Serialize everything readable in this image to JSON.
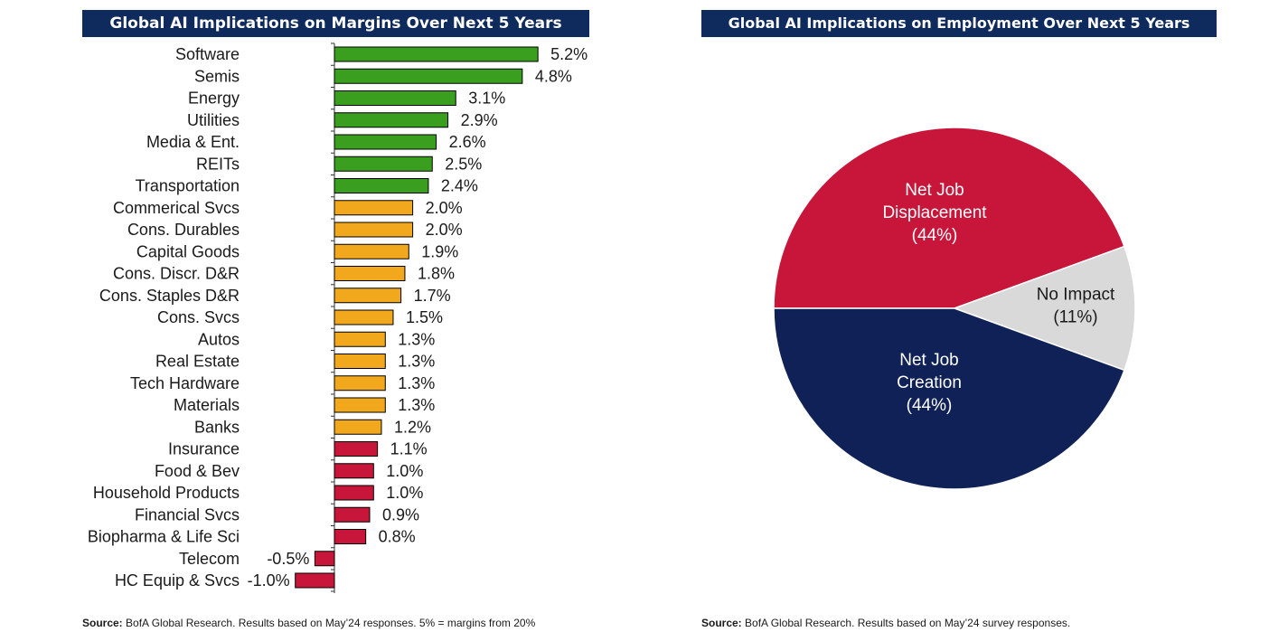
{
  "chart_data": [
    {
      "type": "bar",
      "orientation": "horizontal",
      "title": "Global AI Implications on Margins Over Next 5 Years",
      "categories": [
        "Software",
        "Semis",
        "Energy",
        "Utilities",
        "Media & Ent.",
        "REITs",
        "Transportation",
        "Commerical Svcs",
        "Cons. Durables",
        "Capital Goods",
        "Cons. Discr. D&R",
        "Cons. Staples D&R",
        "Cons. Svcs",
        "Autos",
        "Real Estate",
        "Tech Hardware",
        "Materials",
        "Banks",
        "Insurance",
        "Food & Bev",
        "Household Products",
        "Financial Svcs",
        "Biopharma & Life Sci",
        "Telecom",
        "HC Equip & Svcs"
      ],
      "values": [
        5.2,
        4.8,
        3.1,
        2.9,
        2.6,
        2.5,
        2.4,
        2.0,
        2.0,
        1.9,
        1.8,
        1.7,
        1.5,
        1.3,
        1.3,
        1.3,
        1.3,
        1.2,
        1.1,
        1.0,
        1.0,
        0.9,
        0.8,
        -0.5,
        -1.0
      ],
      "value_labels": [
        "5.2%",
        "4.8%",
        "3.1%",
        "2.9%",
        "2.6%",
        "2.5%",
        "2.4%",
        "2.0%",
        "2.0%",
        "1.9%",
        "1.8%",
        "1.7%",
        "1.5%",
        "1.3%",
        "1.3%",
        "1.3%",
        "1.3%",
        "1.2%",
        "1.1%",
        "1.0%",
        "1.0%",
        "0.9%",
        "0.8%",
        "-0.5%",
        "-1.0%"
      ],
      "tiers": [
        "high",
        "high",
        "high",
        "high",
        "high",
        "high",
        "high",
        "mid",
        "mid",
        "mid",
        "mid",
        "mid",
        "mid",
        "mid",
        "mid",
        "mid",
        "mid",
        "mid",
        "low",
        "low",
        "low",
        "low",
        "low",
        "low",
        "low"
      ],
      "colors": {
        "high": "#3a9e1e",
        "mid": "#f2a81d",
        "low": "#c8163a"
      },
      "xlim": [
        -1.0,
        5.2
      ],
      "grid": false,
      "legend": "none"
    },
    {
      "type": "pie",
      "title": "Global AI Implications on Employment Over Next 5 Years",
      "slices": [
        {
          "label_lines": [
            "Net Job",
            "Displacement",
            "(44%)"
          ],
          "value": 44,
          "color": "#c8163a",
          "text_color": "#ffffff"
        },
        {
          "label_lines": [
            "No Impact",
            "(11%)"
          ],
          "value": 11,
          "color": "#d9d9d9",
          "text_color": "#1a1a1a"
        },
        {
          "label_lines": [
            "Net Job",
            "Creation",
            "(44%)"
          ],
          "value": 44,
          "color": "#0f2157",
          "text_color": "#ffffff"
        }
      ],
      "legend": "none"
    }
  ],
  "sources": {
    "left": {
      "label": "Source:",
      "text": " BofA Global Research. Results based on May’24 responses. 5% = margins from 20%"
    },
    "right": {
      "label": "Source:",
      "text": " BofA Global Research. Results based on May’24 survey responses."
    }
  }
}
